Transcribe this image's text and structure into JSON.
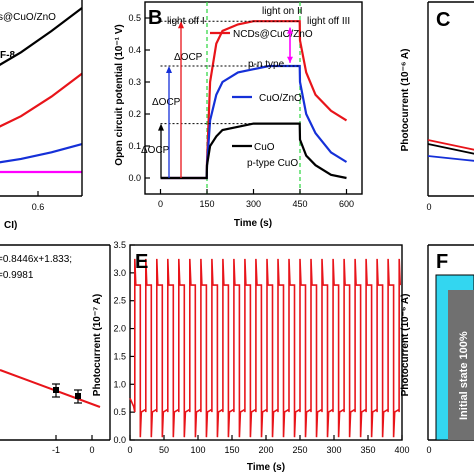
{
  "colors": {
    "black": "#000000",
    "red": "#e8141a",
    "blue": "#1530d8",
    "magenta": "#ff00ff",
    "green": "#39d94b",
    "cyan": "#33d6f0",
    "gray": "#707070",
    "white": "#ffffff"
  },
  "panels": {
    "A": {
      "legend_partial": "s@CuO/ZnO",
      "curve_label_partial": "F-8",
      "xlabel_partial": "CI)",
      "xticks": [
        "0.6"
      ]
    },
    "B": {
      "letter": "B",
      "xlabel": "Time (s)",
      "ylabel": "Open circuit potential (10⁻¹ V)",
      "region_labels": [
        "light off   I",
        "light on   II",
        "light off   III"
      ],
      "annotations": {
        "docp_red": "ΔOCP",
        "docp_blue": "ΔOCP",
        "docp_black": "ΔOCP",
        "pn_type": "p-n   type",
        "ptype_cuo": "p-type CuO"
      }
    },
    "C": {
      "letter": "C",
      "ylabel": "Photocurrent (10⁻⁶ A)",
      "xticks": [
        "0"
      ]
    },
    "D": {
      "equation_line1": "=0.8446x+1.833;",
      "equation_line2": "=0.9981",
      "xticks": [
        "-1",
        "0"
      ]
    },
    "E": {
      "letter": "E",
      "xlabel": "Time (s)",
      "ylabel": "Photocurrent (10⁻⁷ A)"
    },
    "F": {
      "letter": "F",
      "ylabel": "Photocurrent (10⁻⁶ A)",
      "bar_text": "Initial state 100%",
      "xticks": [
        "0"
      ]
    }
  },
  "chart_data": [
    {
      "panel": "A",
      "type": "line",
      "xticks": [
        0.6
      ],
      "series": [
        {
          "name": "s@CuO/ZnO",
          "color": "black",
          "x": [
            0.0,
            0.2,
            0.4,
            0.6,
            0.8
          ],
          "y": [
            0.55,
            0.62,
            0.73,
            0.86,
            1.0
          ]
        },
        {
          "color": "red",
          "x": [
            0.0,
            0.2,
            0.4,
            0.6,
            0.8
          ],
          "y": [
            0.18,
            0.25,
            0.34,
            0.46,
            0.6
          ]
        },
        {
          "color": "blue",
          "x": [
            0.0,
            0.2,
            0.4,
            0.6,
            0.8
          ],
          "y": [
            0.03,
            0.05,
            0.08,
            0.12,
            0.17
          ]
        },
        {
          "color": "magenta",
          "x": [
            0.0,
            0.2,
            0.4,
            0.6,
            0.8
          ],
          "y": [
            0.0,
            0.0,
            0.0,
            0.0,
            0.0
          ]
        }
      ]
    },
    {
      "panel": "B",
      "type": "line",
      "xlabel": "Time (s)",
      "ylabel": "Open circuit potential (10⁻¹ V)",
      "xlim": [
        -50,
        650
      ],
      "ylim": [
        -0.05,
        0.55
      ],
      "xticks": [
        0,
        150,
        300,
        450,
        600
      ],
      "yticks": [
        0.0,
        0.1,
        0.2,
        0.3,
        0.4,
        0.5
      ],
      "vlines": [
        150,
        450
      ],
      "series": [
        {
          "name": "NCDs@CuO/ZnO",
          "color": "red",
          "x": [
            0,
            50,
            100,
            149,
            150,
            160,
            180,
            200,
            250,
            300,
            350,
            400,
            449,
            450,
            470,
            500,
            550,
            600
          ],
          "y": [
            0.0,
            0.0,
            0.0,
            0.0,
            0.05,
            0.3,
            0.42,
            0.46,
            0.48,
            0.49,
            0.49,
            0.49,
            0.49,
            0.43,
            0.33,
            0.26,
            0.21,
            0.18
          ]
        },
        {
          "name": "CuO/ZnO",
          "color": "blue",
          "x": [
            0,
            50,
            100,
            149,
            150,
            160,
            180,
            200,
            250,
            300,
            350,
            400,
            449,
            450,
            470,
            500,
            550,
            600
          ],
          "y": [
            0.0,
            0.0,
            0.0,
            0.0,
            0.04,
            0.18,
            0.26,
            0.3,
            0.33,
            0.34,
            0.35,
            0.35,
            0.35,
            0.3,
            0.2,
            0.14,
            0.08,
            0.05
          ]
        },
        {
          "name": "CuO",
          "color": "black",
          "x": [
            0,
            50,
            100,
            149,
            150,
            160,
            180,
            200,
            250,
            300,
            350,
            400,
            449,
            450,
            470,
            500,
            550,
            600
          ],
          "y": [
            0.0,
            0.0,
            0.0,
            0.0,
            0.04,
            0.1,
            0.13,
            0.15,
            0.16,
            0.17,
            0.17,
            0.17,
            0.17,
            0.12,
            0.07,
            0.04,
            0.01,
            0.0
          ]
        }
      ]
    },
    {
      "panel": "C",
      "type": "line",
      "ylabel": "Photocurrent (10⁻⁶ A)",
      "xticks": [
        0
      ],
      "series": [
        {
          "color": "red",
          "x": [
            0,
            10,
            20
          ],
          "y": [
            0.14,
            0.12,
            0.1
          ]
        },
        {
          "color": "black",
          "x": [
            0,
            10,
            20
          ],
          "y": [
            0.13,
            0.11,
            0.09
          ]
        },
        {
          "color": "blue",
          "x": [
            0,
            10,
            20
          ],
          "y": [
            0.1,
            0.09,
            0.08
          ]
        }
      ]
    },
    {
      "panel": "D",
      "type": "scatter",
      "xticks": [
        -1,
        0
      ],
      "fit_line": {
        "slope": 0.8446,
        "intercept": 1.833
      },
      "points": [
        {
          "x": -0.75,
          "y": 1.2,
          "err": 0.09
        },
        {
          "x": -0.3,
          "y": 1.1,
          "err": 0.09
        }
      ]
    },
    {
      "panel": "E",
      "type": "line",
      "xlabel": "Time (s)",
      "ylabel": "Photocurrent (10⁻⁷ A)",
      "xlim": [
        0,
        400
      ],
      "ylim": [
        0,
        3.5
      ],
      "xticks": [
        0,
        50,
        100,
        150,
        200,
        250,
        300,
        350,
        400
      ],
      "yticks": [
        0.0,
        0.5,
        1.0,
        1.5,
        2.0,
        2.5,
        3.0,
        3.5
      ],
      "series": [
        {
          "color": "red",
          "pulse_start_s": 7,
          "pulse_period_s": 16.2,
          "on_duration_s": 8.1,
          "cycles": 25,
          "initial_current": 0.75,
          "dark_current": 0.5,
          "on_plateau": 2.78,
          "spike_peak": 3.25,
          "dark_undershoot": 0.05
        }
      ]
    },
    {
      "panel": "F",
      "type": "bar",
      "ylabel": "Photocurrent (10⁻⁶ A)",
      "categories": [
        "0"
      ],
      "values": [
        100
      ],
      "bar_label": "Initial state 100%"
    }
  ]
}
